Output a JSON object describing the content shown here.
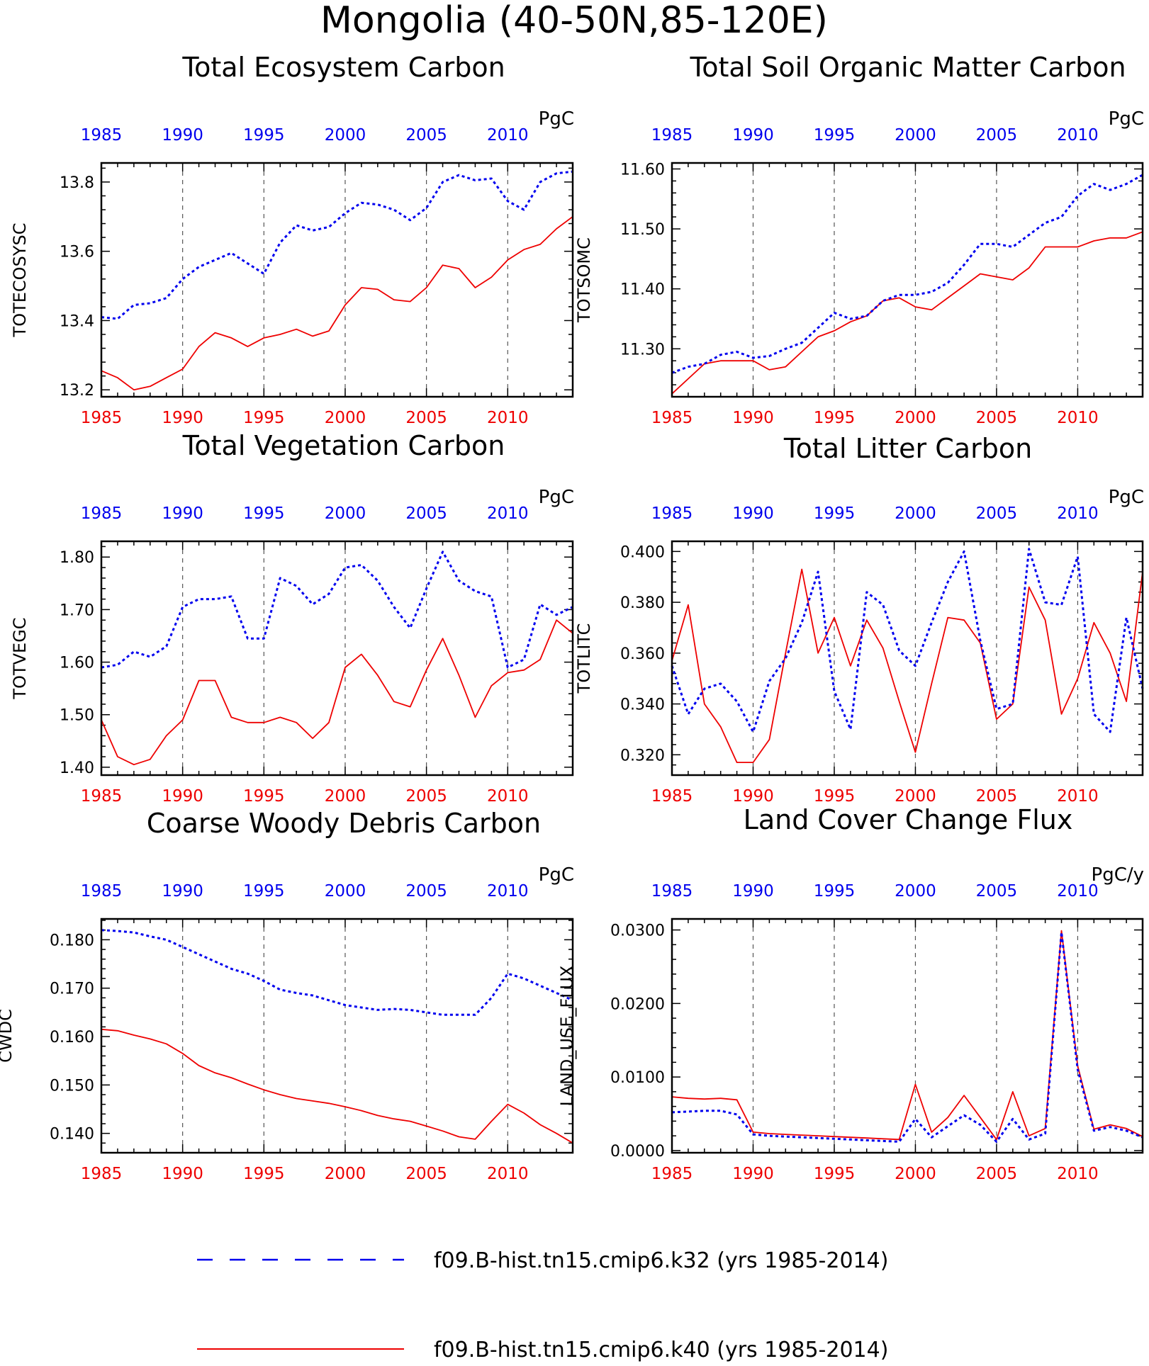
{
  "main_title": "Mongolia (40-50N,85-120E)",
  "colors": {
    "series1": "#0000ee",
    "series2": "#ee0000",
    "grid": "#555555",
    "axis": "#000000"
  },
  "legend": [
    {
      "label": "f09.B-hist.tn15.cmip6.k32 (yrs 1985-2014)",
      "color": "#0000ee",
      "style": "dashed"
    },
    {
      "label": "f09.B-hist.tn15.cmip6.k40 (yrs 1985-2014)",
      "color": "#ee0000",
      "style": "solid"
    }
  ],
  "chart_data": [
    {
      "type": "line",
      "title": "Total Ecosystem Carbon",
      "ylabel": "TOTECOSYSC",
      "unit": "PgC",
      "xlim": [
        1985,
        2014
      ],
      "ylim": [
        13.18,
        13.855
      ],
      "yticks": [
        13.2,
        13.4,
        13.6,
        13.8
      ],
      "ytick_labels": [
        "13.2",
        "13.4",
        "13.6",
        "13.8"
      ],
      "xticks": [
        1985,
        1990,
        1995,
        2000,
        2005,
        2010
      ],
      "x": [
        1985,
        1986,
        1987,
        1988,
        1989,
        1990,
        1991,
        1992,
        1993,
        1994,
        1995,
        1996,
        1997,
        1998,
        1999,
        2000,
        2001,
        2002,
        2003,
        2004,
        2005,
        2006,
        2007,
        2008,
        2009,
        2010,
        2011,
        2012,
        2013,
        2014
      ],
      "series": [
        {
          "style": "dashed",
          "color": "#0000ee",
          "values": [
            13.41,
            13.405,
            13.445,
            13.45,
            13.465,
            13.52,
            13.555,
            13.575,
            13.595,
            13.565,
            13.535,
            13.625,
            13.675,
            13.66,
            13.67,
            13.71,
            13.74,
            13.735,
            13.72,
            13.69,
            13.725,
            13.8,
            13.82,
            13.805,
            13.81,
            13.745,
            13.72,
            13.8,
            13.825,
            13.83
          ]
        },
        {
          "style": "solid",
          "color": "#ee0000",
          "values": [
            13.255,
            13.235,
            13.2,
            13.21,
            13.235,
            13.26,
            13.325,
            13.365,
            13.35,
            13.325,
            13.35,
            13.36,
            13.375,
            13.355,
            13.37,
            13.445,
            13.495,
            13.49,
            13.46,
            13.455,
            13.495,
            13.56,
            13.55,
            13.495,
            13.525,
            13.575,
            13.605,
            13.62,
            13.665,
            13.7
          ]
        }
      ]
    },
    {
      "type": "line",
      "title": "Total Soil Organic Matter Carbon",
      "ylabel": "TOTSOMC",
      "unit": "PgC",
      "xlim": [
        1985,
        2014
      ],
      "ylim": [
        11.22,
        11.61
      ],
      "yticks": [
        11.3,
        11.4,
        11.5,
        11.6
      ],
      "ytick_labels": [
        "11.30",
        "11.40",
        "11.50",
        "11.60"
      ],
      "xticks": [
        1985,
        1990,
        1995,
        2000,
        2005,
        2010
      ],
      "x": [
        1985,
        1986,
        1987,
        1988,
        1989,
        1990,
        1991,
        1992,
        1993,
        1994,
        1995,
        1996,
        1997,
        1998,
        1999,
        2000,
        2001,
        2002,
        2003,
        2004,
        2005,
        2006,
        2007,
        2008,
        2009,
        2010,
        2011,
        2012,
        2013,
        2014
      ],
      "series": [
        {
          "style": "dashed",
          "color": "#0000ee",
          "values": [
            11.26,
            11.27,
            11.275,
            11.29,
            11.295,
            11.285,
            11.288,
            11.3,
            11.31,
            11.335,
            11.36,
            11.35,
            11.355,
            11.38,
            11.39,
            11.39,
            11.395,
            11.41,
            11.44,
            11.475,
            11.475,
            11.47,
            11.49,
            11.51,
            11.52,
            11.555,
            11.575,
            11.565,
            11.575,
            11.59
          ]
        },
        {
          "style": "solid",
          "color": "#ee0000",
          "values": [
            11.225,
            11.25,
            11.275,
            11.28,
            11.28,
            11.28,
            11.265,
            11.27,
            11.295,
            11.32,
            11.33,
            11.345,
            11.355,
            11.38,
            11.385,
            11.37,
            11.365,
            11.385,
            11.405,
            11.425,
            11.42,
            11.415,
            11.435,
            11.47,
            11.47,
            11.47,
            11.48,
            11.485,
            11.485,
            11.495
          ]
        }
      ]
    },
    {
      "type": "line",
      "title": "Total Vegetation Carbon",
      "ylabel": "TOTVEGC",
      "unit": "PgC",
      "xlim": [
        1985,
        2014
      ],
      "ylim": [
        1.385,
        1.83
      ],
      "yticks": [
        1.4,
        1.5,
        1.6,
        1.7,
        1.8
      ],
      "ytick_labels": [
        "1.40",
        "1.50",
        "1.60",
        "1.70",
        "1.80"
      ],
      "xticks": [
        1985,
        1990,
        1995,
        2000,
        2005,
        2010
      ],
      "x": [
        1985,
        1986,
        1987,
        1988,
        1989,
        1990,
        1991,
        1992,
        1993,
        1994,
        1995,
        1996,
        1997,
        1998,
        1999,
        2000,
        2001,
        2002,
        2003,
        2004,
        2005,
        2006,
        2007,
        2008,
        2009,
        2010,
        2011,
        2012,
        2013,
        2014
      ],
      "series": [
        {
          "style": "dashed",
          "color": "#0000ee",
          "values": [
            1.59,
            1.595,
            1.62,
            1.61,
            1.63,
            1.705,
            1.72,
            1.72,
            1.725,
            1.645,
            1.645,
            1.76,
            1.745,
            1.71,
            1.73,
            1.78,
            1.785,
            1.755,
            1.705,
            1.665,
            1.74,
            1.81,
            1.755,
            1.735,
            1.725,
            1.59,
            1.605,
            1.71,
            1.69,
            1.705
          ]
        },
        {
          "style": "solid",
          "color": "#ee0000",
          "values": [
            1.49,
            1.42,
            1.405,
            1.415,
            1.46,
            1.49,
            1.565,
            1.565,
            1.495,
            1.485,
            1.485,
            1.495,
            1.485,
            1.455,
            1.485,
            1.59,
            1.615,
            1.575,
            1.525,
            1.515,
            1.585,
            1.645,
            1.575,
            1.495,
            1.555,
            1.58,
            1.585,
            1.605,
            1.68,
            1.655
          ]
        }
      ]
    },
    {
      "type": "line",
      "title": "Total Litter Carbon",
      "ylabel": "TOTLITC",
      "unit": "PgC",
      "xlim": [
        1985,
        2014
      ],
      "ylim": [
        0.312,
        0.404
      ],
      "yticks": [
        0.32,
        0.34,
        0.36,
        0.38,
        0.4
      ],
      "ytick_labels": [
        "0.320",
        "0.340",
        "0.360",
        "0.380",
        "0.400"
      ],
      "xticks": [
        1985,
        1990,
        1995,
        2000,
        2005,
        2010
      ],
      "x": [
        1985,
        1986,
        1987,
        1988,
        1989,
        1990,
        1991,
        1992,
        1993,
        1994,
        1995,
        1996,
        1997,
        1998,
        1999,
        2000,
        2001,
        2002,
        2003,
        2004,
        2005,
        2006,
        2007,
        2008,
        2009,
        2010,
        2011,
        2012,
        2013,
        2014
      ],
      "series": [
        {
          "style": "dashed",
          "color": "#0000ee",
          "values": [
            0.355,
            0.336,
            0.346,
            0.348,
            0.341,
            0.329,
            0.349,
            0.358,
            0.372,
            0.392,
            0.345,
            0.33,
            0.384,
            0.379,
            0.361,
            0.355,
            0.372,
            0.388,
            0.4,
            0.365,
            0.338,
            0.34,
            0.401,
            0.38,
            0.379,
            0.398,
            0.336,
            0.329,
            0.374,
            0.346
          ]
        },
        {
          "style": "solid",
          "color": "#ee0000",
          "values": [
            0.357,
            0.379,
            0.34,
            0.331,
            0.317,
            0.317,
            0.326,
            0.36,
            0.393,
            0.36,
            0.374,
            0.355,
            0.373,
            0.362,
            0.341,
            0.321,
            0.348,
            0.374,
            0.373,
            0.364,
            0.334,
            0.34,
            0.386,
            0.373,
            0.336,
            0.35,
            0.372,
            0.36,
            0.341,
            0.392
          ]
        }
      ]
    },
    {
      "type": "line",
      "title": "Coarse Woody Debris Carbon",
      "ylabel": "CWDC",
      "unit": "PgC",
      "xlim": [
        1985,
        2014
      ],
      "ylim": [
        0.136,
        0.1843
      ],
      "yticks": [
        0.14,
        0.15,
        0.16,
        0.17,
        0.18
      ],
      "ytick_labels": [
        "0.140",
        "0.150",
        "0.160",
        "0.170",
        "0.180"
      ],
      "xticks": [
        1985,
        1990,
        1995,
        2000,
        2005,
        2010
      ],
      "x": [
        1985,
        1986,
        1987,
        1988,
        1989,
        1990,
        1991,
        1992,
        1993,
        1994,
        1995,
        1996,
        1997,
        1998,
        1999,
        2000,
        2001,
        2002,
        2003,
        2004,
        2005,
        2006,
        2007,
        2008,
        2009,
        2010,
        2011,
        2012,
        2013,
        2014
      ],
      "series": [
        {
          "style": "dashed",
          "color": "#0000ee",
          "values": [
            0.182,
            0.1818,
            0.1815,
            0.1807,
            0.18,
            0.1785,
            0.177,
            0.1755,
            0.174,
            0.173,
            0.1715,
            0.1697,
            0.169,
            0.1685,
            0.1675,
            0.1665,
            0.166,
            0.1655,
            0.1657,
            0.1655,
            0.165,
            0.1645,
            0.1645,
            0.1645,
            0.168,
            0.173,
            0.172,
            0.1705,
            0.169,
            0.1675
          ]
        },
        {
          "style": "solid",
          "color": "#ee0000",
          "values": [
            0.1615,
            0.1612,
            0.1603,
            0.1595,
            0.1585,
            0.1565,
            0.154,
            0.1525,
            0.1515,
            0.1502,
            0.149,
            0.148,
            0.1472,
            0.1467,
            0.1462,
            0.1455,
            0.1447,
            0.1437,
            0.143,
            0.1425,
            0.1415,
            0.1405,
            0.1393,
            0.1388,
            0.1425,
            0.146,
            0.1442,
            0.1418,
            0.14,
            0.138
          ]
        }
      ]
    },
    {
      "type": "line",
      "title": "Land Cover Change Flux",
      "ylabel": "LAND_USE_FLUX",
      "unit": "PgC/y",
      "xlim": [
        1985,
        2014
      ],
      "ylim": [
        -0.0003,
        0.0315
      ],
      "yticks": [
        0,
        0.01,
        0.02,
        0.03
      ],
      "ytick_labels": [
        "0.0000",
        "0.0100",
        "0.0200",
        "0.0300"
      ],
      "xticks": [
        1985,
        1990,
        1995,
        2000,
        2005,
        2010
      ],
      "x": [
        1985,
        1986,
        1987,
        1988,
        1989,
        1990,
        1991,
        1992,
        1993,
        1994,
        1995,
        1996,
        1997,
        1998,
        1999,
        2000,
        2001,
        2002,
        2003,
        2004,
        2005,
        2006,
        2007,
        2008,
        2009,
        2010,
        2011,
        2012,
        2013,
        2014
      ],
      "series": [
        {
          "style": "dashed",
          "color": "#0000ee",
          "values": [
            0.0052,
            0.0053,
            0.0054,
            0.0054,
            0.0049,
            0.0022,
            0.002,
            0.0019,
            0.0018,
            0.0017,
            0.0016,
            0.0015,
            0.0014,
            0.0013,
            0.0012,
            0.0043,
            0.0018,
            0.0033,
            0.0048,
            0.0035,
            0.0012,
            0.0043,
            0.0015,
            0.0023,
            0.0297,
            0.011,
            0.0027,
            0.0032,
            0.0027,
            0.0018
          ]
        },
        {
          "style": "solid",
          "color": "#ee0000",
          "values": [
            0.0073,
            0.0071,
            0.007,
            0.0071,
            0.0069,
            0.0025,
            0.0023,
            0.0022,
            0.0021,
            0.002,
            0.0019,
            0.0018,
            0.0017,
            0.0016,
            0.0015,
            0.009,
            0.0025,
            0.0045,
            0.0075,
            0.0045,
            0.0015,
            0.008,
            0.002,
            0.003,
            0.0299,
            0.0115,
            0.0029,
            0.0035,
            0.003,
            0.0019
          ]
        }
      ]
    }
  ]
}
